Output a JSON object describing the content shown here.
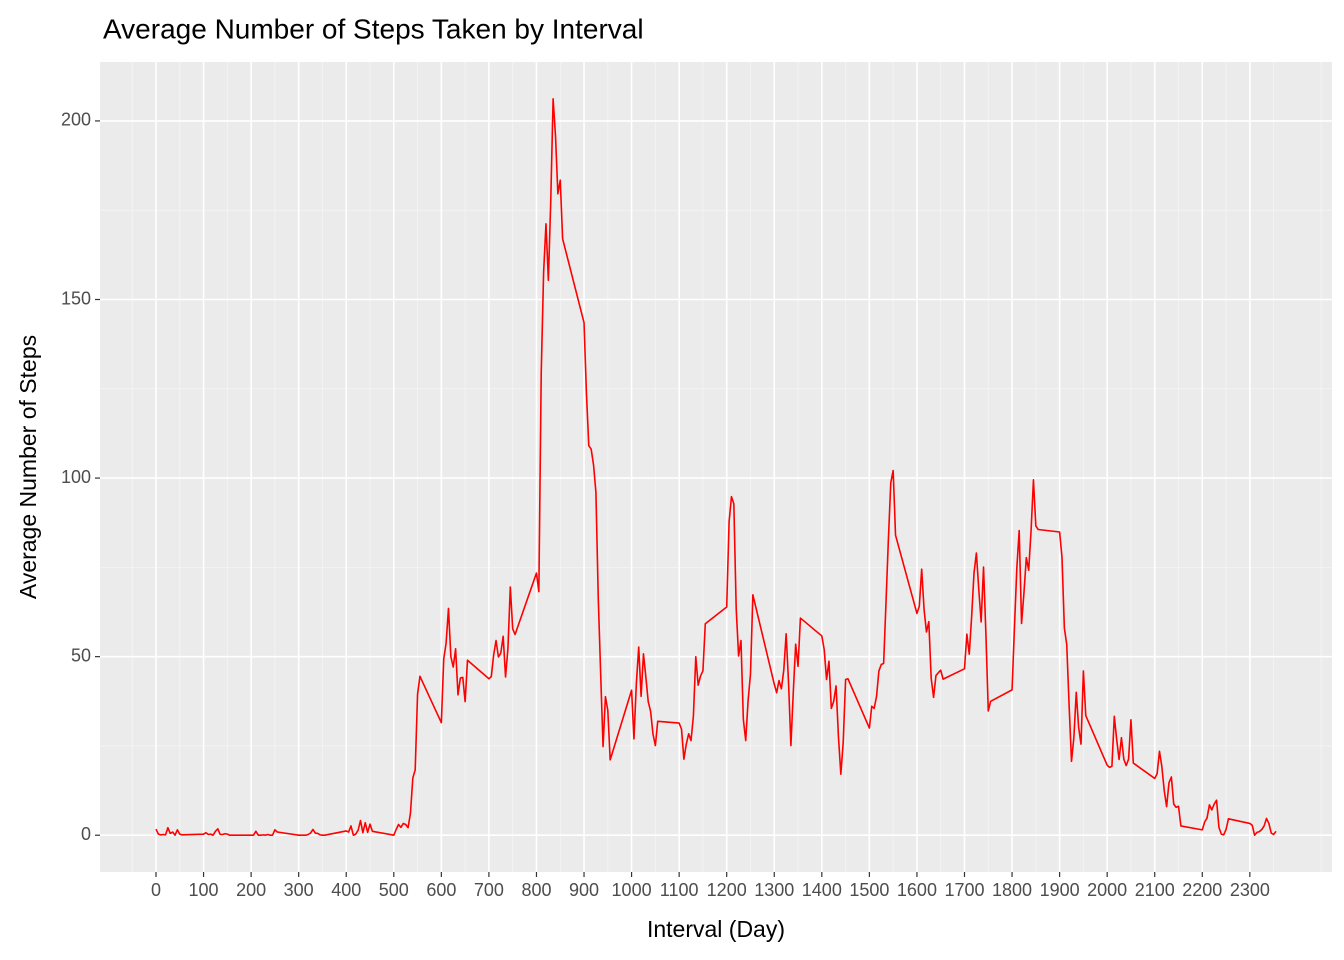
{
  "chart_data": {
    "type": "line",
    "title": "Average Number of Steps Taken by Interval",
    "x_label": "Interval (Day)",
    "y_label": "Average Number of Steps",
    "color": "#ff0000",
    "grid": true,
    "xlim": [
      -117.75,
      2472.75
    ],
    "ylim": [
      -10.3,
      216.5
    ],
    "xticks": [
      0,
      100,
      200,
      300,
      400,
      500,
      600,
      700,
      800,
      900,
      1000,
      1100,
      1200,
      1300,
      1400,
      1500,
      1600,
      1700,
      1800,
      1900,
      2000,
      2100,
      2200,
      2300
    ],
    "yticks": [
      0,
      50,
      100,
      150,
      200
    ],
    "xminor": [
      -50,
      50,
      150,
      250,
      350,
      450,
      550,
      650,
      750,
      850,
      950,
      1050,
      1150,
      1250,
      1350,
      1450,
      1550,
      1650,
      1750,
      1850,
      1950,
      2050,
      2150,
      2250,
      2350,
      2450
    ],
    "yminor": [
      25,
      75,
      125,
      175
    ],
    "x": [
      0,
      5,
      10,
      15,
      20,
      25,
      30,
      35,
      40,
      45,
      50,
      55,
      100,
      105,
      110,
      115,
      120,
      125,
      130,
      135,
      140,
      145,
      150,
      155,
      200,
      205,
      210,
      215,
      220,
      225,
      230,
      235,
      240,
      245,
      250,
      255,
      300,
      305,
      310,
      315,
      320,
      325,
      330,
      335,
      340,
      345,
      350,
      355,
      400,
      405,
      410,
      415,
      420,
      425,
      430,
      435,
      440,
      445,
      450,
      455,
      500,
      505,
      510,
      515,
      520,
      525,
      530,
      535,
      540,
      545,
      550,
      555,
      600,
      605,
      610,
      615,
      620,
      625,
      630,
      635,
      640,
      645,
      650,
      655,
      700,
      705,
      710,
      715,
      720,
      725,
      730,
      735,
      740,
      745,
      750,
      755,
      800,
      805,
      810,
      815,
      820,
      825,
      830,
      835,
      840,
      845,
      850,
      855,
      900,
      905,
      910,
      915,
      920,
      925,
      930,
      935,
      940,
      945,
      950,
      955,
      1000,
      1005,
      1010,
      1015,
      1020,
      1025,
      1030,
      1035,
      1040,
      1045,
      1050,
      1055,
      1100,
      1105,
      1110,
      1115,
      1120,
      1125,
      1130,
      1135,
      1140,
      1145,
      1150,
      1155,
      1200,
      1205,
      1210,
      1215,
      1220,
      1225,
      1230,
      1235,
      1240,
      1245,
      1250,
      1255,
      1300,
      1305,
      1310,
      1315,
      1320,
      1325,
      1330,
      1335,
      1340,
      1345,
      1350,
      1355,
      1400,
      1405,
      1410,
      1415,
      1420,
      1425,
      1430,
      1435,
      1440,
      1445,
      1450,
      1455,
      1500,
      1505,
      1510,
      1515,
      1520,
      1525,
      1530,
      1535,
      1540,
      1545,
      1550,
      1555,
      1600,
      1605,
      1610,
      1615,
      1620,
      1625,
      1630,
      1635,
      1640,
      1645,
      1650,
      1655,
      1700,
      1705,
      1710,
      1715,
      1720,
      1725,
      1730,
      1735,
      1740,
      1745,
      1750,
      1755,
      1800,
      1805,
      1810,
      1815,
      1820,
      1825,
      1830,
      1835,
      1840,
      1845,
      1850,
      1855,
      1900,
      1905,
      1910,
      1915,
      1920,
      1925,
      1930,
      1935,
      1940,
      1945,
      1950,
      1955,
      2000,
      2005,
      2010,
      2015,
      2020,
      2025,
      2030,
      2035,
      2040,
      2045,
      2050,
      2055,
      2100,
      2105,
      2110,
      2115,
      2120,
      2125,
      2130,
      2135,
      2140,
      2145,
      2150,
      2155,
      2200,
      2205,
      2210,
      2215,
      2220,
      2225,
      2230,
      2235,
      2240,
      2245,
      2250,
      2255,
      2300,
      2305,
      2310,
      2315,
      2320,
      2325,
      2330,
      2335,
      2340,
      2345,
      2350,
      2355
    ],
    "values": [
      1.7,
      0.3,
      0.1,
      0.2,
      0.1,
      2.1,
      0.5,
      0.9,
      0,
      1.5,
      0.3,
      0.1,
      0.3,
      0.7,
      0.2,
      0.3,
      0,
      1.1,
      1.8,
      0.2,
      0.2,
      0.4,
      0.3,
      0,
      0,
      0,
      1.1,
      0,
      0,
      0.1,
      0,
      0.2,
      0,
      0,
      1.5,
      0.9,
      0,
      0,
      0,
      0,
      0.2,
      0.6,
      1.6,
      0.6,
      0.5,
      0.1,
      0,
      0,
      1.2,
      0.9,
      2.6,
      0,
      0.3,
      1.4,
      4.1,
      0.7,
      3.5,
      0.8,
      3.1,
      1.1,
      0,
      1.6,
      3,
      2.2,
      3.3,
      3,
      2.1,
      6.1,
      16,
      18.3,
      39.5,
      44.5,
      31.5,
      49.3,
      53.8,
      63.5,
      50,
      47.1,
      52.2,
      39.3,
      44,
      44.2,
      37.4,
      49,
      43.8,
      44.4,
      50.5,
      54.5,
      49.9,
      51,
      55.7,
      44.3,
      52.3,
      69.5,
      57.8,
      56.2,
      73.4,
      68.2,
      129.4,
      157.5,
      171.2,
      155.4,
      177.3,
      206.2,
      195.9,
      179.6,
      183.4,
      167,
      143.5,
      124,
      109.1,
      108.1,
      103.7,
      96,
      66.2,
      45.2,
      24.8,
      38.8,
      35,
      21.1,
      40.6,
      27,
      42.4,
      52.7,
      38.9,
      50.8,
      44.3,
      37.4,
      34.7,
      28.3,
      25.1,
      31.9,
      31.4,
      29.7,
      21.3,
      25.5,
      28.4,
      26.5,
      33.4,
      50,
      42,
      44.6,
      46,
      59.2,
      63.9,
      87.7,
      94.8,
      92.8,
      63.4,
      50.2,
      54.5,
      32.4,
      26.5,
      37.7,
      45.1,
      67.3,
      42.3,
      39.9,
      43.3,
      41,
      46.2,
      56.4,
      42.8,
      25.1,
      40,
      53.5,
      47.3,
      60.8,
      55.8,
      52,
      43.6,
      48.7,
      35.5,
      37.5,
      41.8,
      27.5,
      17.1,
      26.1,
      43.6,
      43.8,
      30,
      36.1,
      35.5,
      38.8,
      46,
      47.8,
      48.1,
      65.3,
      82.9,
      98.7,
      102.1,
      84,
      62.1,
      64.1,
      74.5,
      63.2,
      56.9,
      59.8,
      43.9,
      38.6,
      44.7,
      45.5,
      46.2,
      43.7,
      46.6,
      56.3,
      50.7,
      61.2,
      73.4,
      79,
      68.9,
      59.7,
      75.1,
      56.5,
      34.8,
      37.5,
      40.7,
      58,
      74.7,
      85.3,
      59.3,
      67.8,
      77.7,
      74.2,
      85.3,
      99.5,
      86.6,
      85.6,
      84.9,
      77.8,
      58,
      53.4,
      36.3,
      20.7,
      27.4,
      40,
      30.2,
      25.5,
      46,
      33.5,
      19.6,
      19,
      19.3,
      33.3,
      26.8,
      21.2,
      27.3,
      21.3,
      19.5,
      21.3,
      32.3,
      20.2,
      15.9,
      17.2,
      23.5,
      19.2,
      12.5,
      8,
      14.7,
      16.3,
      8.7,
      7.8,
      8.1,
      2.6,
      1.5,
      3.7,
      4.8,
      8.5,
      7.1,
      8.7,
      9.8,
      2.2,
      0.3,
      0.1,
      1.6,
      4.6,
      3.3,
      2.8,
      0,
      0.8,
      1,
      1.6,
      2.6,
      4.7,
      3.3,
      0.6,
      0.2,
      1.1
    ]
  }
}
